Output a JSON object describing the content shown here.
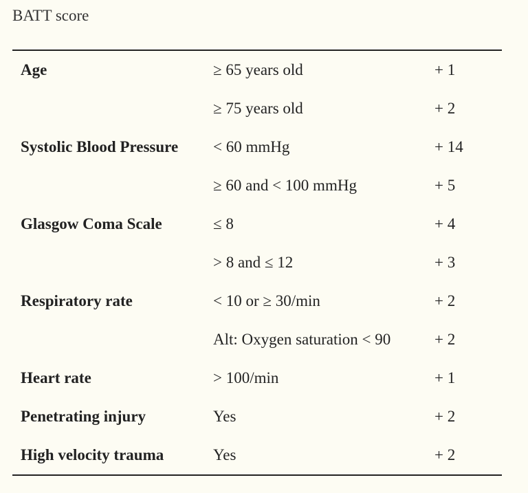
{
  "title": "BATT score",
  "rows": [
    {
      "parameter": "Age",
      "criterion": "≥ 65 years old",
      "points": "+ 1"
    },
    {
      "parameter": "",
      "criterion": "≥ 75 years old",
      "points": "+ 2"
    },
    {
      "parameter": "Systolic Blood Pressure",
      "criterion": "<  60 mmHg",
      "points": "+ 14"
    },
    {
      "parameter": "",
      "criterion": "≥ 60 and <  100 mmHg",
      "points": "+ 5"
    },
    {
      "parameter": "Glasgow Coma Scale",
      "criterion": "≤ 8",
      "points": "+ 4"
    },
    {
      "parameter": "",
      "criterion": ">  8 and ≤ 12",
      "points": "+ 3"
    },
    {
      "parameter": "Respiratory rate",
      "criterion": "<  10 or ≥ 30/min",
      "points": "+ 2"
    },
    {
      "parameter": "",
      "criterion": "Alt: Oxygen saturation < 90",
      "points": "+ 2"
    },
    {
      "parameter": "Heart rate",
      "criterion": ">  100/min",
      "points": "+ 1"
    },
    {
      "parameter": "Penetrating injury",
      "criterion": "Yes",
      "points": "+ 2"
    },
    {
      "parameter": "High velocity trauma",
      "criterion": "Yes",
      "points": "+ 2"
    }
  ]
}
